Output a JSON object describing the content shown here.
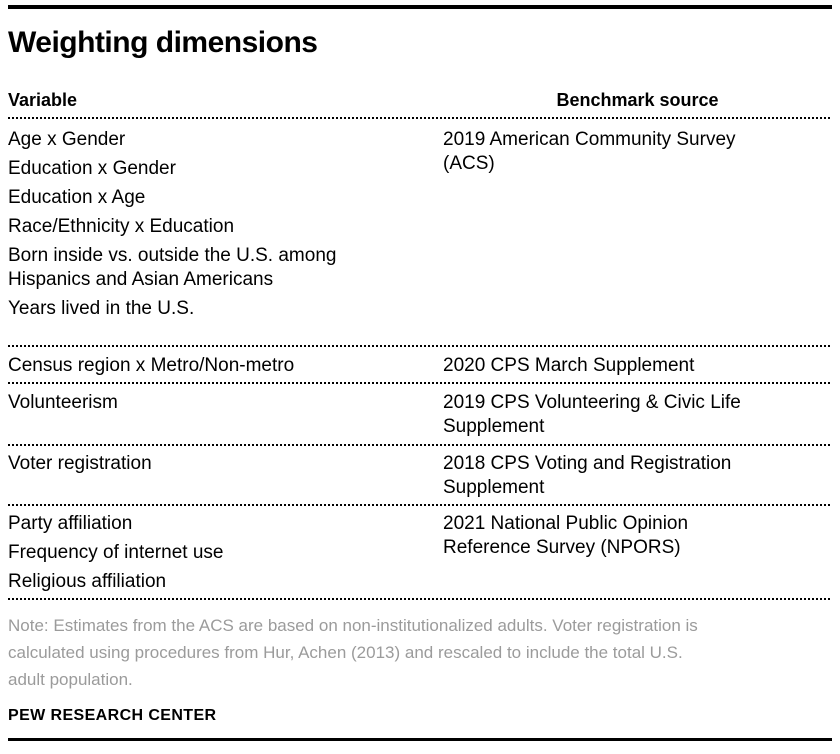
{
  "title": "Weighting dimensions",
  "table": {
    "headers": {
      "variable": "Variable",
      "source": "Benchmark source"
    },
    "rows": [
      {
        "variables": [
          {
            "lines": [
              "Age x Gender"
            ]
          },
          {
            "lines": [
              "Education x Gender"
            ]
          },
          {
            "lines": [
              "Education x Age"
            ]
          },
          {
            "lines": [
              "Race/Ethnicity x Education"
            ]
          },
          {
            "lines": [
              "Born inside vs. outside the U.S. among",
              "Hispanics and Asian Americans"
            ]
          },
          {
            "lines": [
              "Years lived in the U.S."
            ]
          }
        ],
        "source": {
          "lines": [
            "2019 American Community Survey",
            "(ACS)"
          ]
        }
      },
      {
        "variables": [
          {
            "lines": [
              "Census region x Metro/Non-metro"
            ]
          }
        ],
        "source": {
          "lines": [
            "2020 CPS March Supplement"
          ]
        }
      },
      {
        "variables": [
          {
            "lines": [
              "Volunteerism"
            ]
          }
        ],
        "source": {
          "lines": [
            "2019 CPS Volunteering & Civic Life",
            "Supplement"
          ]
        }
      },
      {
        "variables": [
          {
            "lines": [
              "Voter registration"
            ]
          }
        ],
        "source": {
          "lines": [
            "2018 CPS Voting and Registration",
            "Supplement"
          ]
        }
      },
      {
        "variables": [
          {
            "lines": [
              "Party affiliation"
            ]
          },
          {
            "lines": [
              "Frequency of internet use"
            ]
          },
          {
            "lines": [
              "Religious affiliation"
            ]
          }
        ],
        "source": {
          "lines": [
            "2021 National Public Opinion",
            "Reference Survey (NPORS)"
          ]
        }
      }
    ]
  },
  "note": {
    "lines": [
      "Note: Estimates from the ACS are based on non-institutionalized adults. Voter registration is",
      "calculated using procedures from Hur, Achen (2013) and rescaled to include the total U.S.",
      "adult population."
    ]
  },
  "footer": "PEW RESEARCH CENTER",
  "colors": {
    "text": "#000000",
    "note_text": "#9b9b9b",
    "rule": "#000000",
    "background": "#ffffff"
  },
  "chart_data": {
    "type": "table",
    "title": "Weighting dimensions",
    "columns": [
      "Variable",
      "Benchmark source"
    ],
    "rows": [
      {
        "variable": "Age x Gender; Education x Gender; Education x Age; Race/Ethnicity x Education; Born inside vs. outside the U.S. among Hispanics and Asian Americans; Years lived in the U.S.",
        "benchmark_source": "2019 American Community Survey (ACS)"
      },
      {
        "variable": "Census region x Metro/Non-metro",
        "benchmark_source": "2020 CPS March Supplement"
      },
      {
        "variable": "Volunteerism",
        "benchmark_source": "2019 CPS Volunteering & Civic Life Supplement"
      },
      {
        "variable": "Voter registration",
        "benchmark_source": "2018 CPS Voting and Registration Supplement"
      },
      {
        "variable": "Party affiliation; Frequency of internet use; Religious affiliation",
        "benchmark_source": "2021 National Public Opinion Reference Survey (NPORS)"
      }
    ],
    "note": "Note: Estimates from the ACS are based on non-institutionalized adults. Voter registration is calculated using procedures from Hur, Achen (2013) and rescaled to include the total U.S. adult population.",
    "source": "PEW RESEARCH CENTER",
    "legend_position": "none",
    "grid": "dotted row separators"
  }
}
